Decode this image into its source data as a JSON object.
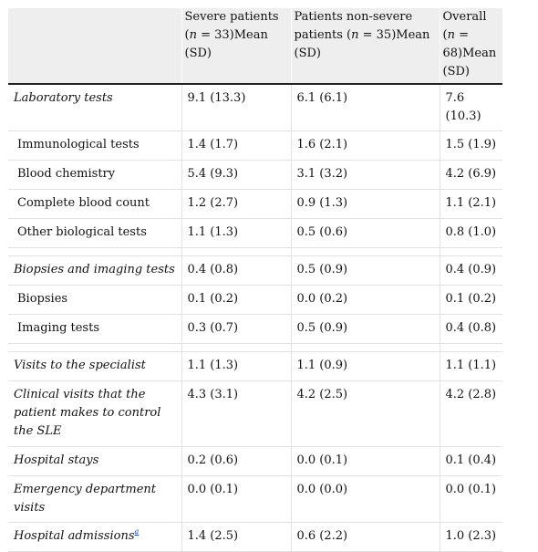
{
  "headers": {
    "severe": {
      "pre": "Severe patients (",
      "n": "n",
      "post": " = 33)Mean (SD)"
    },
    "nonsevere": {
      "pre": "Patients non-severe patients (",
      "n": "n",
      "post": " = 35)Mean (SD)"
    },
    "overall": {
      "pre": "Overall (",
      "n": "n",
      "post": " = 68)Mean (SD)"
    }
  },
  "rows": [
    {
      "label": "Laboratory tests",
      "severe": "9.1 (13.3)",
      "nonsevere": "6.1 (6.1)",
      "overall": "7.6 (10.3)"
    },
    {
      "label": "Immunological tests",
      "severe": "1.4 (1.7)",
      "nonsevere": "1.6 (2.1)",
      "overall": "1.5 (1.9)"
    },
    {
      "label": "Blood chemistry",
      "severe": "5.4 (9.3)",
      "nonsevere": "3.1 (3.2)",
      "overall": "4.2 (6.9)"
    },
    {
      "label": "Complete blood count",
      "severe": "1.2 (2.7)",
      "nonsevere": "0.9 (1.3)",
      "overall": "1.1 (2.1)"
    },
    {
      "label": "Other biological tests",
      "severe": "1.1 (1.3)",
      "nonsevere": "0.5 (0.6)",
      "overall": "0.8 (1.0)"
    },
    {
      "label": "Biopsies and imaging tests",
      "severe": "0.4 (0.8)",
      "nonsevere": "0.5 (0.9)",
      "overall": "0.4 (0.9)"
    },
    {
      "label": "Biopsies",
      "severe": "0.1 (0.2)",
      "nonsevere": "0.0 (0.2)",
      "overall": "0.1 (0.2)"
    },
    {
      "label": "Imaging tests",
      "severe": "0.3 (0.7)",
      "nonsevere": "0.5 (0.9)",
      "overall": "0.4 (0.8)"
    },
    {
      "label": "Visits to the specialist",
      "severe": "1.1 (1.3)",
      "nonsevere": "1.1 (0.9)",
      "overall": "1.1 (1.1)"
    },
    {
      "label": "Clinical visits that the patient makes to control the SLE",
      "severe": "4.3 (3.1)",
      "nonsevere": "4.2 (2.5)",
      "overall": "4.2 (2.8)"
    },
    {
      "label": "Hospital stays",
      "severe": "0.2 (0.6)",
      "nonsevere": "0.0 (0.1)",
      "overall": "0.1 (0.4)"
    },
    {
      "label": "Emergency department visits",
      "severe": "0.0 (0.1)",
      "nonsevere": "0.0 (0.0)",
      "overall": "0.0 (0.1)"
    },
    {
      "label": "Hospital admissions",
      "footnote": "a",
      "severe": "1.4 (2.5)",
      "nonsevere": "0.6 (2.2)",
      "overall": "1.0 (2.3)"
    }
  ]
}
